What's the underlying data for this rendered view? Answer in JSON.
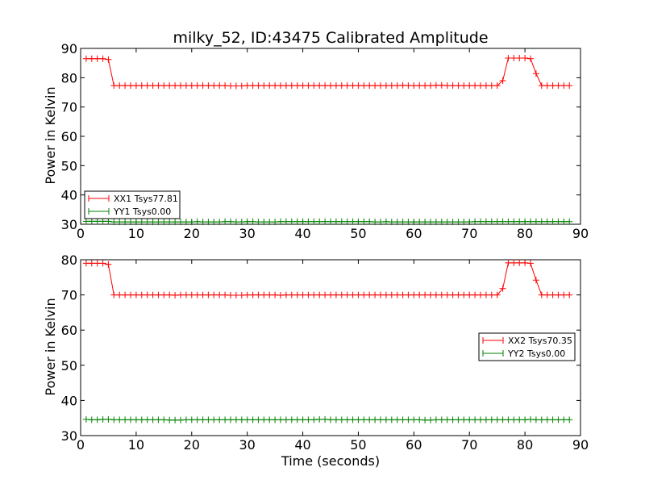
{
  "chart_data": [
    {
      "type": "line",
      "title": "milky_52, ID:43475 Calibrated Amplitude",
      "xlabel": "",
      "ylabel": "Power in Kelvin",
      "xlim": [
        0,
        90
      ],
      "ylim": [
        30,
        90
      ],
      "xticks": [
        "0",
        "10",
        "20",
        "30",
        "40",
        "50",
        "60",
        "70",
        "80",
        "90"
      ],
      "yticks": [
        "30",
        "40",
        "50",
        "60",
        "70",
        "80",
        "90"
      ],
      "grid": false,
      "legend_position": "lower-left",
      "x": [
        1,
        2,
        3,
        4,
        5,
        6,
        7,
        8,
        9,
        10,
        11,
        12,
        13,
        14,
        15,
        16,
        17,
        18,
        19,
        20,
        21,
        22,
        23,
        24,
        25,
        26,
        27,
        28,
        29,
        30,
        31,
        32,
        33,
        34,
        35,
        36,
        37,
        38,
        39,
        40,
        41,
        42,
        43,
        44,
        45,
        46,
        47,
        48,
        49,
        50,
        51,
        52,
        53,
        54,
        55,
        56,
        57,
        58,
        59,
        60,
        61,
        62,
        63,
        64,
        65,
        66,
        67,
        68,
        69,
        70,
        71,
        72,
        73,
        74,
        75,
        76,
        77,
        78,
        79,
        80,
        81,
        82,
        83,
        84,
        85,
        86,
        87,
        88
      ],
      "series": [
        {
          "name": "XX1 Tsys77.81",
          "color": "#ff0000",
          "values": [
            86.5,
            86.5,
            86.5,
            86.5,
            86.2,
            77.3,
            77.3,
            77.3,
            77.3,
            77.3,
            77.3,
            77.3,
            77.3,
            77.3,
            77.3,
            77.3,
            77.3,
            77.3,
            77.3,
            77.3,
            77.3,
            77.3,
            77.3,
            77.3,
            77.3,
            77.3,
            77.2,
            77.2,
            77.2,
            77.3,
            77.3,
            77.3,
            77.3,
            77.3,
            77.3,
            77.3,
            77.3,
            77.3,
            77.3,
            77.3,
            77.3,
            77.3,
            77.3,
            77.3,
            77.3,
            77.3,
            77.3,
            77.3,
            77.3,
            77.3,
            77.3,
            77.3,
            77.3,
            77.3,
            77.3,
            77.3,
            77.3,
            77.4,
            77.3,
            77.3,
            77.3,
            77.3,
            77.3,
            77.4,
            77.4,
            77.3,
            77.3,
            77.3,
            77.3,
            77.3,
            77.3,
            77.3,
            77.3,
            77.3,
            77.3,
            79.0,
            86.7,
            86.7,
            86.7,
            86.7,
            86.5,
            81.4,
            77.3,
            77.3,
            77.3,
            77.3,
            77.3,
            77.3
          ]
        },
        {
          "name": "YY1 Tsys0.00",
          "color": "#008000",
          "values": [
            31.0,
            31.0,
            31.0,
            31.0,
            31.0,
            30.8,
            30.8,
            30.8,
            30.8,
            30.8,
            30.8,
            30.8,
            30.8,
            30.8,
            30.8,
            30.8,
            30.8,
            30.8,
            30.8,
            30.8,
            30.9,
            30.8,
            30.8,
            30.8,
            30.8,
            30.9,
            30.9,
            30.8,
            30.8,
            30.9,
            30.9,
            30.8,
            30.8,
            30.8,
            30.8,
            30.9,
            30.9,
            30.9,
            30.9,
            30.9,
            30.9,
            30.9,
            30.9,
            30.9,
            30.9,
            30.9,
            30.9,
            30.9,
            30.9,
            30.9,
            30.9,
            30.9,
            30.8,
            30.8,
            30.9,
            30.8,
            30.8,
            30.8,
            30.8,
            30.8,
            30.8,
            30.8,
            30.8,
            30.8,
            30.8,
            30.8,
            30.8,
            30.8,
            30.8,
            30.8,
            30.9,
            30.9,
            30.9,
            30.9,
            30.9,
            30.9,
            30.9,
            30.9,
            30.9,
            30.9,
            30.9,
            30.9,
            30.9,
            30.9,
            30.9,
            30.9,
            30.9,
            30.9
          ]
        }
      ]
    },
    {
      "type": "line",
      "title": "",
      "xlabel": "Time (seconds)",
      "ylabel": "Power in Kelvin",
      "xlim": [
        0,
        90
      ],
      "ylim": [
        30,
        80
      ],
      "xticks": [
        "0",
        "10",
        "20",
        "30",
        "40",
        "50",
        "60",
        "70",
        "80",
        "90"
      ],
      "yticks": [
        "30",
        "40",
        "50",
        "60",
        "70",
        "80"
      ],
      "grid": false,
      "legend_position": "center-right",
      "x": [
        1,
        2,
        3,
        4,
        5,
        6,
        7,
        8,
        9,
        10,
        11,
        12,
        13,
        14,
        15,
        16,
        17,
        18,
        19,
        20,
        21,
        22,
        23,
        24,
        25,
        26,
        27,
        28,
        29,
        30,
        31,
        32,
        33,
        34,
        35,
        36,
        37,
        38,
        39,
        40,
        41,
        42,
        43,
        44,
        45,
        46,
        47,
        48,
        49,
        50,
        51,
        52,
        53,
        54,
        55,
        56,
        57,
        58,
        59,
        60,
        61,
        62,
        63,
        64,
        65,
        66,
        67,
        68,
        69,
        70,
        71,
        72,
        73,
        74,
        75,
        76,
        77,
        78,
        79,
        80,
        81,
        82,
        83,
        84,
        85,
        86,
        87,
        88
      ],
      "series": [
        {
          "name": "XX2 Tsys70.35",
          "color": "#ff0000",
          "values": [
            79.0,
            79.0,
            79.0,
            79.0,
            78.7,
            70.0,
            70.0,
            70.0,
            70.0,
            70.0,
            70.0,
            70.0,
            70.0,
            70.0,
            70.0,
            70.0,
            69.9,
            70.0,
            70.0,
            70.0,
            70.0,
            70.0,
            70.0,
            70.0,
            70.0,
            70.0,
            69.9,
            69.9,
            69.9,
            70.0,
            70.0,
            70.0,
            70.0,
            70.0,
            70.0,
            69.9,
            70.0,
            70.0,
            70.0,
            70.0,
            70.0,
            70.0,
            70.0,
            70.0,
            70.0,
            70.0,
            70.0,
            70.0,
            70.0,
            70.0,
            70.0,
            70.0,
            70.0,
            70.0,
            70.0,
            70.0,
            70.0,
            70.0,
            70.0,
            70.0,
            70.0,
            70.0,
            70.0,
            70.0,
            70.0,
            70.0,
            70.0,
            70.0,
            70.0,
            70.0,
            70.0,
            70.0,
            70.0,
            70.0,
            70.0,
            71.8,
            79.1,
            79.1,
            79.1,
            79.1,
            79.0,
            74.2,
            70.0,
            70.0,
            70.0,
            70.0,
            70.0,
            70.0
          ]
        },
        {
          "name": "YY2 Tsys0.00",
          "color": "#008000",
          "values": [
            34.6,
            34.5,
            34.5,
            34.6,
            34.6,
            34.5,
            34.5,
            34.5,
            34.5,
            34.5,
            34.5,
            34.5,
            34.5,
            34.5,
            34.5,
            34.4,
            34.4,
            34.4,
            34.5,
            34.5,
            34.5,
            34.5,
            34.5,
            34.5,
            34.5,
            34.5,
            34.5,
            34.5,
            34.5,
            34.5,
            34.5,
            34.5,
            34.5,
            34.5,
            34.5,
            34.5,
            34.5,
            34.5,
            34.5,
            34.5,
            34.5,
            34.5,
            34.6,
            34.6,
            34.5,
            34.5,
            34.5,
            34.5,
            34.5,
            34.5,
            34.5,
            34.5,
            34.5,
            34.5,
            34.5,
            34.5,
            34.5,
            34.5,
            34.5,
            34.5,
            34.5,
            34.4,
            34.4,
            34.5,
            34.5,
            34.5,
            34.5,
            34.5,
            34.5,
            34.5,
            34.5,
            34.5,
            34.5,
            34.5,
            34.5,
            34.5,
            34.5,
            34.5,
            34.5,
            34.5,
            34.6,
            34.5,
            34.5,
            34.5,
            34.5,
            34.5,
            34.5,
            34.5
          ]
        }
      ]
    }
  ]
}
